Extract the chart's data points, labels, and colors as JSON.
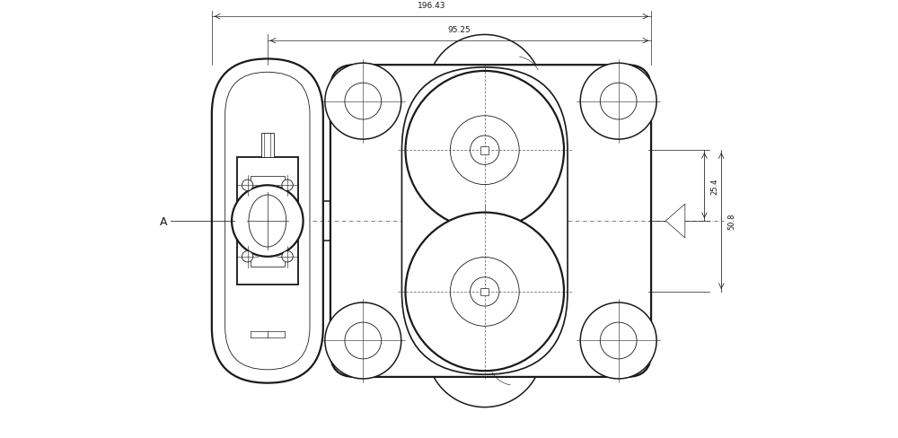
{
  "fig_width": 10.0,
  "fig_height": 4.89,
  "dpi": 100,
  "bg_color": "#ffffff",
  "line_color": "#1a1a1a",
  "lw_main": 1.1,
  "lw_thick": 1.6,
  "lw_thin": 0.6,
  "lw_dim": 0.55,
  "dim1_label": "196.43",
  "dim2_label": "95.25",
  "dim3_label": "25.4",
  "dim4_label": "50.8",
  "label_A": "A"
}
